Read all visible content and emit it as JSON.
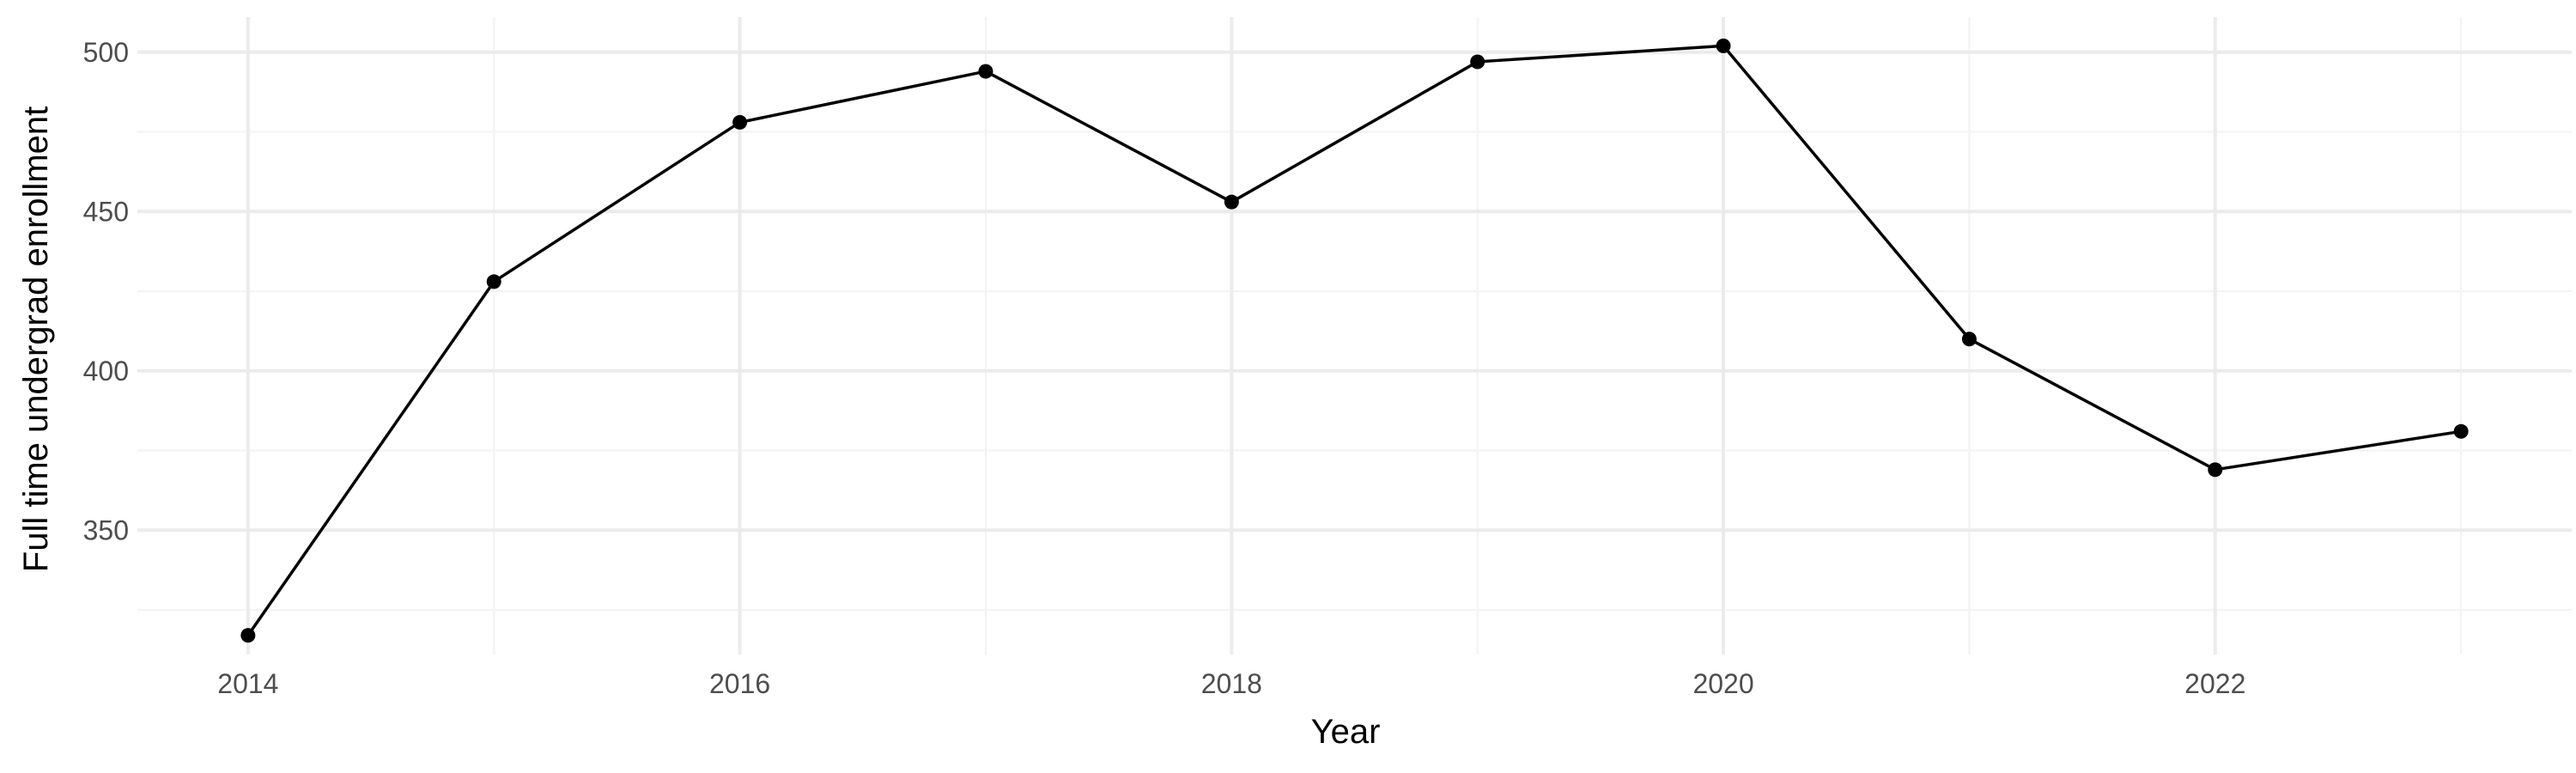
{
  "colors": {
    "background": "#ffffff",
    "grid_major": "#ebebeb",
    "grid_minor": "#f3f3f3",
    "line": "#000000",
    "point": "#000000",
    "tick_text": "#4d4d4d",
    "axis_title_text": "#000000"
  },
  "chart_data": {
    "type": "line",
    "title": "",
    "xlabel": "Year",
    "ylabel": "Full time undergrad enrollment",
    "x": [
      2014,
      2015,
      2016,
      2017,
      2018,
      2019,
      2020,
      2021,
      2022,
      2023
    ],
    "series": [
      {
        "values": [
          317,
          428,
          478,
          494,
          453,
          497,
          502,
          410,
          369,
          381
        ]
      }
    ],
    "xlim": [
      2013.55,
      2023.45
    ],
    "ylim": [
      311,
      511
    ],
    "x_ticks": [
      2014,
      2016,
      2018,
      2020,
      2022
    ],
    "x_tick_labels": [
      "2014",
      "2016",
      "2018",
      "2020",
      "2022"
    ],
    "x_minor_ticks": [
      2015,
      2017,
      2019,
      2021,
      2023
    ],
    "y_ticks": [
      350,
      400,
      450,
      500
    ],
    "y_tick_labels": [
      "350",
      "400",
      "450",
      "500"
    ],
    "y_minor_ticks": [
      325,
      375,
      425,
      475
    ],
    "grid": true,
    "legend": "none",
    "markers": true
  }
}
